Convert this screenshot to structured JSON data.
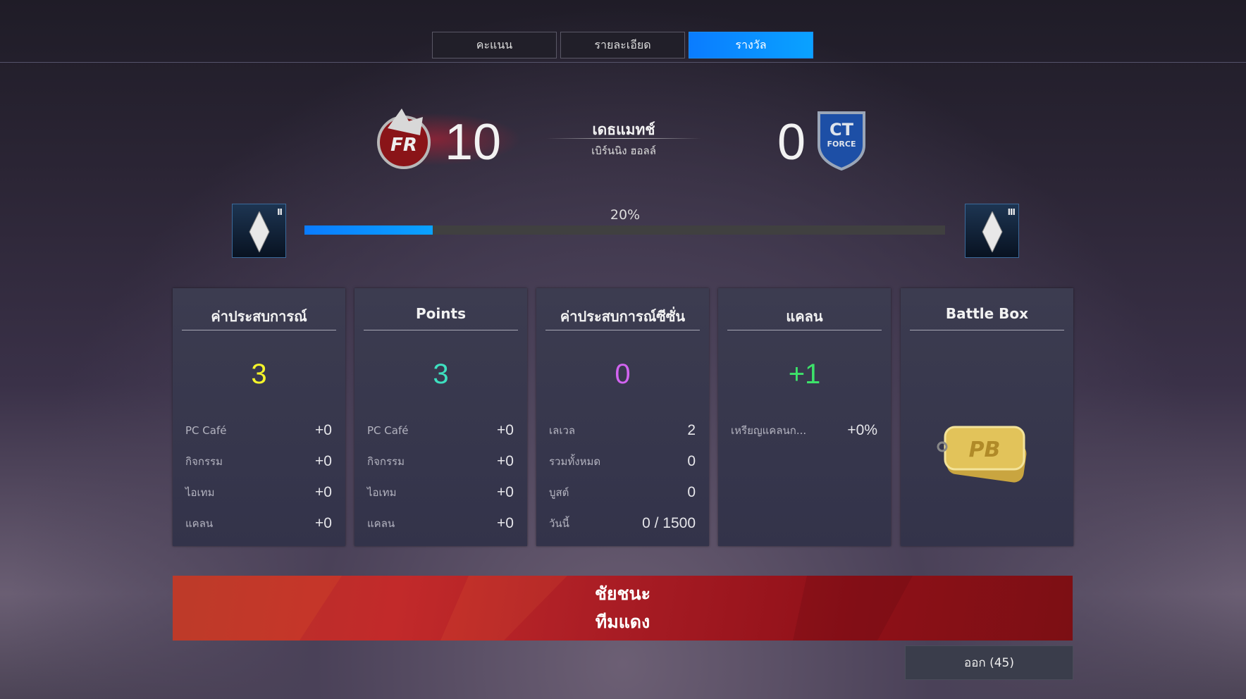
{
  "tabs": [
    {
      "label": "คะแนน",
      "active": false
    },
    {
      "label": "รายละเอียด",
      "active": false
    },
    {
      "label": "รางวัล",
      "active": true
    }
  ],
  "match": {
    "mode": "เดธแมทช์",
    "map": "เบิร์นนิง ฮอลล์",
    "red_score": "10",
    "blue_score": "0",
    "red_logo_text": "FR",
    "blue_logo_text": "CT FORCE"
  },
  "progress": {
    "label": "20%",
    "value": 20,
    "current_rank_icon": "rank-ii-icon",
    "next_rank_icon": "rank-iii-icon",
    "current_pips": "II",
    "next_pips": "III"
  },
  "cards": [
    {
      "title": "ค่าประสบการณ์",
      "value": "3",
      "color": "#f5f52a",
      "rows": [
        {
          "label": "PC Café",
          "value": "+0"
        },
        {
          "label": "กิจกรรม",
          "value": "+0"
        },
        {
          "label": "ไอเทม",
          "value": "+0"
        },
        {
          "label": "แคลน",
          "value": "+0"
        }
      ]
    },
    {
      "title": "Points",
      "value": "3",
      "color": "#3ee0c0",
      "rows": [
        {
          "label": "PC Café",
          "value": "+0"
        },
        {
          "label": "กิจกรรม",
          "value": "+0"
        },
        {
          "label": "ไอเทม",
          "value": "+0"
        },
        {
          "label": "แคลน",
          "value": "+0"
        }
      ]
    },
    {
      "title": "ค่าประสบการณ์ซีซั่น",
      "value": "0",
      "color": "#d264f0",
      "rows": [
        {
          "label": "เลเวล",
          "value": "2"
        },
        {
          "label": "รวมทั้งหมด",
          "value": "0"
        },
        {
          "label": "บูสต์",
          "value": "0"
        },
        {
          "label": "วันนี้",
          "value": "0 / 1500"
        }
      ]
    },
    {
      "title": "แคลน",
      "value": "+1",
      "color": "#3de36a",
      "rows": [
        {
          "label": "เหรียญแคลนก...",
          "value": "+0%"
        }
      ]
    },
    {
      "title": "Battle Box",
      "reward_icon": "gold-dogtag-icon"
    }
  ],
  "banner": {
    "line1": "ชัยชนะ",
    "line2": "ทีมแดง"
  },
  "exit_button": "ออก (45)"
}
